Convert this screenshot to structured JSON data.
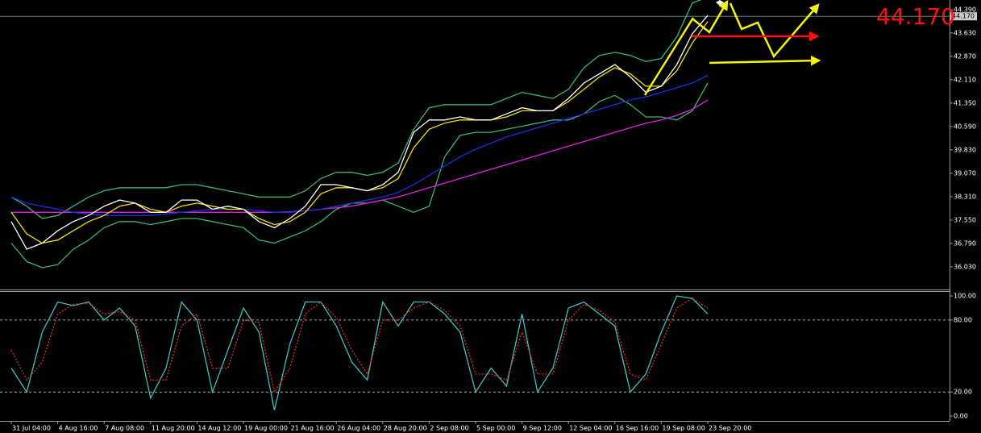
{
  "chart_data": [
    {
      "type": "line",
      "categories": [
        "31 Jul 04:00",
        null,
        null,
        "4 Aug 16:00",
        null,
        null,
        "7 Aug 08:00",
        null,
        null,
        "11 Aug 20:00",
        null,
        null,
        "14 Aug 12:00",
        null,
        null,
        "19 Aug 00:00",
        null,
        null,
        "21 Aug 16:00",
        null,
        null,
        "26 Aug 04:00",
        null,
        null,
        "28 Aug 20:00",
        null,
        null,
        "2 Sep 08:00",
        null,
        null,
        "5 Sep 00:00",
        null,
        null,
        "9 Sep 12:00",
        null,
        null,
        "12 Sep 04:00",
        null,
        null,
        "16 Sep 16:00",
        null,
        null,
        "19 Sep 08:00",
        null,
        null,
        "23 Sep 20:00"
      ],
      "series": [
        {
          "color": "#3cb371",
          "values": [
            38.3,
            38.0,
            37.6,
            37.7,
            38.0,
            38.3,
            38.5,
            38.6,
            38.6,
            38.6,
            38.6,
            38.7,
            38.7,
            38.6,
            38.5,
            38.4,
            38.3,
            38.3,
            38.3,
            38.5,
            38.9,
            39.1,
            39.1,
            39.0,
            39.1,
            39.4,
            40.5,
            41.2,
            41.3,
            41.3,
            41.3,
            41.3,
            41.5,
            41.7,
            41.6,
            41.5,
            41.8,
            42.5,
            42.9,
            43.0,
            42.9,
            42.7,
            42.8,
            43.5,
            44.6,
            44.8
          ]
        },
        {
          "color": "#3cb371",
          "values": [
            36.8,
            36.2,
            36.0,
            36.1,
            36.6,
            36.9,
            37.3,
            37.5,
            37.5,
            37.4,
            37.5,
            37.6,
            37.6,
            37.5,
            37.4,
            37.3,
            36.9,
            36.8,
            37.0,
            37.2,
            37.5,
            37.9,
            38.1,
            38.1,
            38.2,
            38.0,
            37.8,
            38.0,
            39.6,
            40.3,
            40.4,
            40.4,
            40.5,
            40.6,
            40.7,
            40.8,
            40.8,
            41.0,
            41.4,
            41.6,
            41.3,
            40.9,
            40.9,
            40.8,
            41.1,
            42.0
          ]
        },
        {
          "color": "#e020e0",
          "values": [
            37.8,
            37.8,
            37.8,
            37.8,
            37.8,
            37.8,
            37.8,
            37.8,
            37.8,
            37.8,
            37.8,
            37.8,
            37.8,
            37.8,
            37.8,
            37.8,
            37.8,
            37.8,
            37.82,
            37.85,
            37.9,
            37.95,
            38.0,
            38.1,
            38.2,
            38.3,
            38.45,
            38.6,
            38.75,
            38.9,
            39.05,
            39.2,
            39.35,
            39.5,
            39.65,
            39.8,
            39.95,
            40.1,
            40.25,
            40.4,
            40.55,
            40.7,
            40.8,
            40.95,
            41.15,
            41.45
          ]
        },
        {
          "color": "#1a2fe0",
          "values": [
            38.3,
            38.1,
            38.0,
            37.9,
            37.8,
            37.75,
            37.7,
            37.7,
            37.7,
            37.7,
            37.75,
            37.8,
            37.85,
            37.9,
            37.9,
            37.9,
            37.85,
            37.8,
            37.8,
            37.85,
            37.9,
            38.0,
            38.1,
            38.2,
            38.3,
            38.45,
            38.7,
            39.0,
            39.3,
            39.6,
            39.85,
            40.05,
            40.25,
            40.4,
            40.55,
            40.7,
            40.85,
            41.0,
            41.15,
            41.3,
            41.45,
            41.55,
            41.7,
            41.85,
            42.0,
            42.25
          ]
        },
        {
          "color": "#f5e000",
          "values": [
            37.8,
            37.1,
            36.8,
            36.9,
            37.2,
            37.5,
            37.7,
            38.0,
            38.1,
            37.9,
            37.8,
            38.0,
            38.1,
            38.0,
            37.9,
            37.9,
            37.6,
            37.4,
            37.5,
            37.8,
            38.4,
            38.6,
            38.6,
            38.5,
            38.6,
            38.9,
            39.9,
            40.5,
            40.7,
            40.8,
            40.8,
            40.8,
            40.9,
            41.1,
            41.1,
            41.1,
            41.4,
            41.8,
            42.2,
            42.5,
            42.3,
            41.9,
            41.9,
            42.4,
            43.3,
            44.0
          ]
        },
        {
          "color": "#ffffff",
          "values": [
            37.5,
            36.6,
            36.8,
            37.2,
            37.5,
            37.7,
            38.0,
            38.2,
            38.1,
            37.8,
            37.8,
            38.2,
            38.2,
            37.9,
            38.0,
            37.9,
            37.5,
            37.3,
            37.6,
            38.0,
            38.7,
            38.7,
            38.6,
            38.5,
            38.7,
            39.1,
            40.4,
            40.8,
            40.8,
            40.9,
            40.8,
            40.8,
            41.0,
            41.2,
            41.1,
            41.1,
            41.5,
            42.0,
            42.3,
            42.6,
            42.2,
            41.7,
            41.9,
            42.6,
            43.6,
            44.2
          ]
        }
      ],
      "current_price": {
        "value": 44.17,
        "label": "44.170"
      },
      "ylim": [
        35.32,
        44.7
      ],
      "yticks": [
        {
          "value": 44.39,
          "label": "44.390"
        },
        {
          "value": 43.63,
          "label": "43.630"
        },
        {
          "value": 42.87,
          "label": "42.870"
        },
        {
          "value": 42.11,
          "label": "42.110"
        },
        {
          "value": 41.35,
          "label": "41.350"
        },
        {
          "value": 40.59,
          "label": "40.590"
        },
        {
          "value": 39.83,
          "label": "39.830"
        },
        {
          "value": 39.07,
          "label": "39.070"
        },
        {
          "value": 38.31,
          "label": "38.310"
        },
        {
          "value": 37.55,
          "label": "37.550"
        },
        {
          "value": 36.79,
          "label": "36.790"
        },
        {
          "value": 36.03,
          "label": "36.030"
        }
      ]
    },
    {
      "type": "line",
      "series": [
        {
          "color": "#40c0c0",
          "dash": false,
          "values": [
            40,
            20,
            70,
            95,
            92,
            95,
            80,
            90,
            75,
            15,
            40,
            95,
            80,
            20,
            55,
            90,
            70,
            5,
            60,
            95,
            95,
            75,
            45,
            30,
            95,
            75,
            95,
            95,
            85,
            70,
            20,
            40,
            25,
            85,
            20,
            40,
            90,
            95,
            85,
            75,
            20,
            35,
            70,
            100,
            98,
            85
          ]
        },
        {
          "color": "#e03030",
          "dash": true,
          "values": [
            55,
            30,
            45,
            85,
            93,
            94,
            85,
            87,
            80,
            30,
            30,
            75,
            85,
            40,
            40,
            80,
            78,
            20,
            40,
            85,
            95,
            82,
            55,
            35,
            80,
            80,
            90,
            95,
            88,
            75,
            35,
            35,
            30,
            70,
            35,
            35,
            80,
            93,
            88,
            78,
            35,
            30,
            60,
            90,
            98,
            90
          ]
        }
      ],
      "levels": [
        80,
        20
      ],
      "ylim": [
        -4,
        103.4
      ],
      "yticks": [
        {
          "value": 100,
          "label": "100.00"
        },
        {
          "value": 80,
          "label": "80.00"
        },
        {
          "value": 20,
          "label": "20.00"
        },
        {
          "value": 0,
          "label": "0.00"
        }
      ]
    }
  ]
}
